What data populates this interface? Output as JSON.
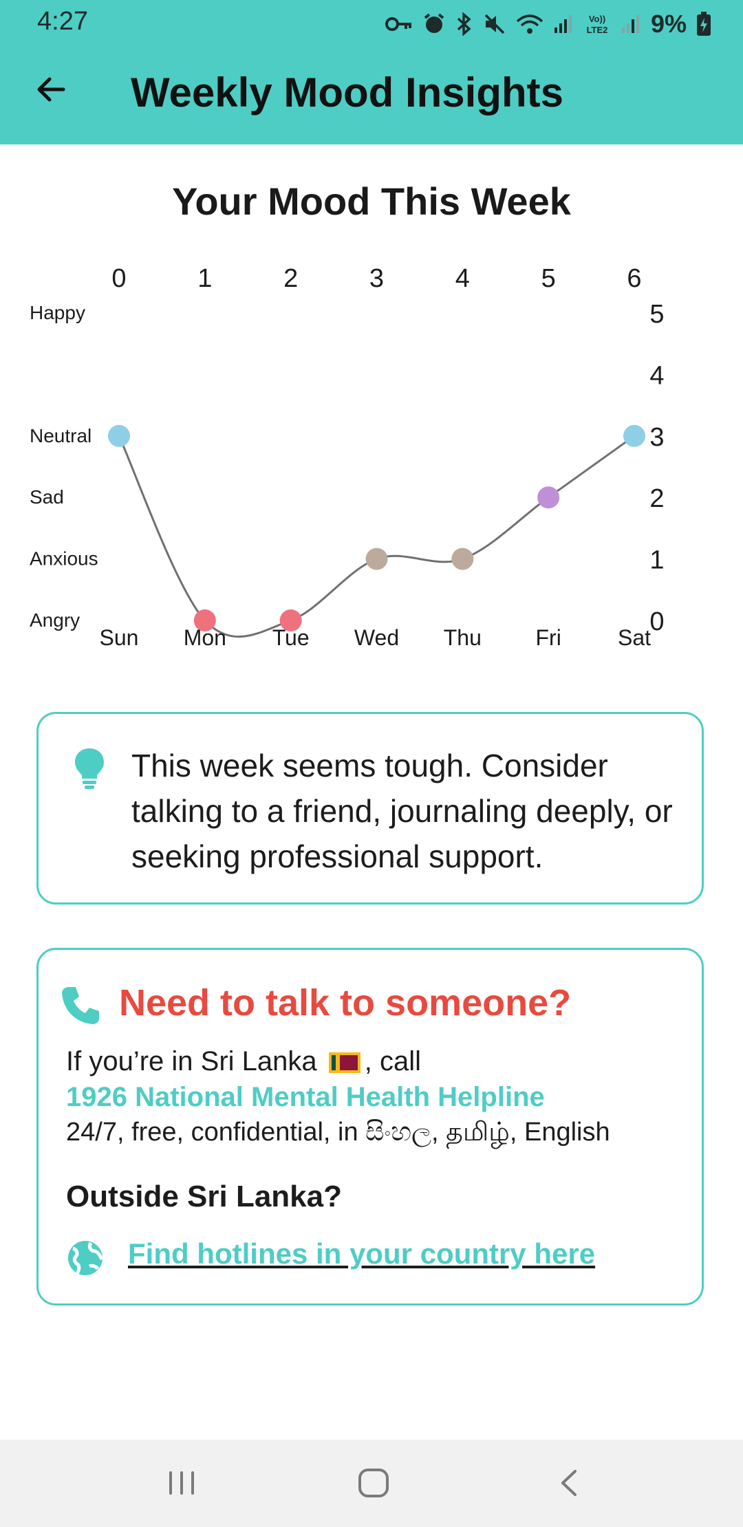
{
  "status_bar": {
    "time": "4:27",
    "battery": "9%",
    "icons": [
      "key-icon",
      "alarm-icon",
      "bluetooth-icon",
      "mute-icon",
      "wifi-icon",
      "signal-icon",
      "volte-icon",
      "signal-icon",
      "battery-charging-icon"
    ],
    "volte_label": "VoLTE2"
  },
  "app_bar": {
    "title": "Weekly Mood Insights",
    "back_icon": "arrow-left-icon"
  },
  "chart_title": "Your Mood This Week",
  "chart_data": {
    "type": "line",
    "x": [
      0,
      1,
      2,
      3,
      4,
      5,
      6
    ],
    "categories": [
      "Sun",
      "Mon",
      "Tue",
      "Wed",
      "Thu",
      "Fri",
      "Sat"
    ],
    "values": [
      3,
      0,
      0,
      1,
      1,
      2,
      3
    ],
    "point_colors": [
      "#8ecfe6",
      "#ef717e",
      "#ef717e",
      "#bcaa9c",
      "#bcaa9c",
      "#bf8fd8",
      "#8ecfe6"
    ],
    "y_category_labels": [
      "Angry",
      "Anxious",
      "Sad",
      "Neutral",
      "",
      "Happy"
    ],
    "xlim": [
      0,
      6
    ],
    "ylim": [
      0,
      5
    ],
    "top_ticks": [
      "0",
      "1",
      "2",
      "3",
      "4",
      "5",
      "6"
    ],
    "right_ticks": [
      "0",
      "1",
      "2",
      "3",
      "4",
      "5"
    ],
    "line_color": "#707070",
    "smooth": true,
    "grid": false
  },
  "insight": {
    "icon": "lightbulb-icon",
    "text": "This week seems tough. Consider talking to a friend, journaling deeply, or seeking professional support."
  },
  "help": {
    "icon": "phone-icon",
    "title": "Need to talk to someone?",
    "line1_prefix": "If you’re in Sri Lanka",
    "line1_suffix": ", call",
    "flag_icon": "sri-lanka-flag-icon",
    "helpline": "1926 National Mental Health Helpline",
    "line3": "24/7, free, confidential, in සිංහල, தமிழ், English",
    "outside_title": "Outside Sri Lanka?",
    "globe_icon": "globe-icon",
    "hotline_link": "Find hotlines in your country here"
  },
  "nav_bar": {
    "recent_icon": "recent-apps-icon",
    "home_icon": "home-icon",
    "back_icon": "back-chevron-icon"
  },
  "colors": {
    "accent": "#4ecdc4",
    "alert": "#e84a3f",
    "text": "#1c1c1c"
  }
}
